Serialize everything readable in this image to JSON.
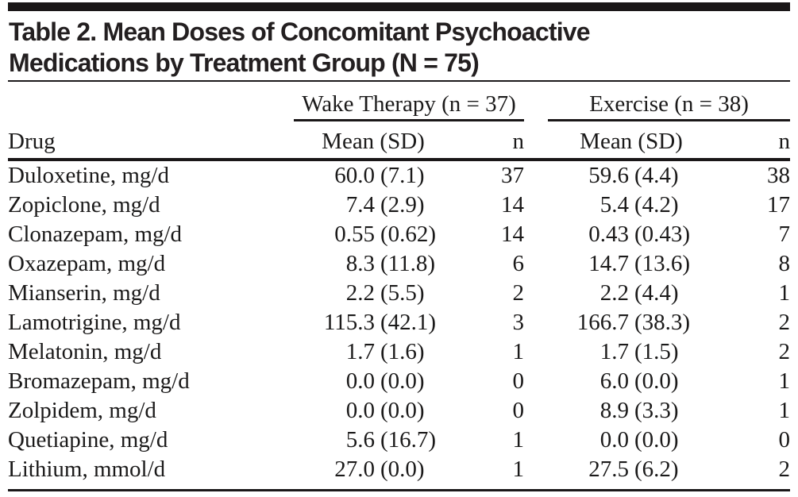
{
  "table": {
    "title_line1": "Table 2. Mean Doses of Concomitant Psychoactive",
    "title_line2": "Medications by Treatment Group (N = 75)",
    "col_groups": [
      {
        "label": "Wake Therapy (n = 37)"
      },
      {
        "label": "Exercise (n = 38)"
      }
    ],
    "columns": {
      "drug": "Drug",
      "mean_sd": "Mean (SD)",
      "n": "n"
    },
    "rows": [
      {
        "drug": "Duloxetine, mg/d",
        "wt": {
          "mean": "60.0",
          "sd": "(7.1)",
          "n": "37"
        },
        "ex": {
          "mean": "59.6",
          "sd": "(4.4)",
          "n": "38"
        }
      },
      {
        "drug": "Zopiclone, mg/d",
        "wt": {
          "mean": "7.4",
          "sd": "(2.9)",
          "n": "14"
        },
        "ex": {
          "mean": "5.4",
          "sd": "(4.2)",
          "n": "17"
        }
      },
      {
        "drug": "Clonazepam, mg/d",
        "wt": {
          "mean": "0.55",
          "sd": "(0.62)",
          "n": "14"
        },
        "ex": {
          "mean": "0.43",
          "sd": "(0.43)",
          "n": "7"
        }
      },
      {
        "drug": "Oxazepam, mg/d",
        "wt": {
          "mean": "8.3",
          "sd": "(11.8)",
          "n": "6"
        },
        "ex": {
          "mean": "14.7",
          "sd": "(13.6)",
          "n": "8"
        }
      },
      {
        "drug": "Mianserin, mg/d",
        "wt": {
          "mean": "2.2",
          "sd": "(5.5)",
          "n": "2"
        },
        "ex": {
          "mean": "2.2",
          "sd": "(4.4)",
          "n": "1"
        }
      },
      {
        "drug": "Lamotrigine, mg/d",
        "wt": {
          "mean": "115.3",
          "sd": "(42.1)",
          "n": "3"
        },
        "ex": {
          "mean": "166.7",
          "sd": "(38.3)",
          "n": "2"
        }
      },
      {
        "drug": "Melatonin, mg/d",
        "wt": {
          "mean": "1.7",
          "sd": "(1.6)",
          "n": "1"
        },
        "ex": {
          "mean": "1.7",
          "sd": "(1.5)",
          "n": "2"
        }
      },
      {
        "drug": "Bromazepam, mg/d",
        "wt": {
          "mean": "0.0",
          "sd": "(0.0)",
          "n": "0"
        },
        "ex": {
          "mean": "6.0",
          "sd": "(0.0)",
          "n": "1"
        }
      },
      {
        "drug": "Zolpidem, mg/d",
        "wt": {
          "mean": "0.0",
          "sd": "(0.0)",
          "n": "0"
        },
        "ex": {
          "mean": "8.9",
          "sd": "(3.3)",
          "n": "1"
        }
      },
      {
        "drug": "Quetiapine, mg/d",
        "wt": {
          "mean": "5.6",
          "sd": "(16.7)",
          "n": "1"
        },
        "ex": {
          "mean": "0.0",
          "sd": "(0.0)",
          "n": "0"
        }
      },
      {
        "drug": "Lithium, mmol/d",
        "wt": {
          "mean": "27.0",
          "sd": "(0.0)",
          "n": "1"
        },
        "ex": {
          "mean": "27.5",
          "sd": "(6.2)",
          "n": "2"
        }
      }
    ],
    "colors": {
      "rule": "#1a1718",
      "text": "#1b1a1a",
      "title": "#231f20",
      "background": "#ffffff"
    }
  },
  "chart_data": {
    "type": "table",
    "title": "Table 2. Mean Doses of Concomitant Psychoactive Medications by Treatment Group (N = 75)",
    "column_groups": [
      "Wake Therapy (n = 37)",
      "Exercise (n = 38)"
    ],
    "columns": [
      "Drug",
      "Mean (SD)",
      "n",
      "Mean (SD)",
      "n"
    ],
    "rows": [
      [
        "Duloxetine, mg/d",
        "60.0 (7.1)",
        "37",
        "59.6 (4.4)",
        "38"
      ],
      [
        "Zopiclone, mg/d",
        "7.4 (2.9)",
        "14",
        "5.4 (4.2)",
        "17"
      ],
      [
        "Clonazepam, mg/d",
        "0.55 (0.62)",
        "14",
        "0.43 (0.43)",
        "7"
      ],
      [
        "Oxazepam, mg/d",
        "8.3 (11.8)",
        "6",
        "14.7 (13.6)",
        "8"
      ],
      [
        "Mianserin, mg/d",
        "2.2 (5.5)",
        "2",
        "2.2 (4.4)",
        "1"
      ],
      [
        "Lamotrigine, mg/d",
        "115.3 (42.1)",
        "3",
        "166.7 (38.3)",
        "2"
      ],
      [
        "Melatonin, mg/d",
        "1.7 (1.6)",
        "1",
        "1.7 (1.5)",
        "2"
      ],
      [
        "Bromazepam, mg/d",
        "0.0 (0.0)",
        "0",
        "6.0 (0.0)",
        "1"
      ],
      [
        "Zolpidem, mg/d",
        "0.0 (0.0)",
        "0",
        "8.9 (3.3)",
        "1"
      ],
      [
        "Quetiapine, mg/d",
        "5.6 (16.7)",
        "1",
        "0.0 (0.0)",
        "0"
      ],
      [
        "Lithium, mmol/d",
        "27.0 (0.0)",
        "1",
        "27.5 (6.2)",
        "2"
      ]
    ]
  }
}
